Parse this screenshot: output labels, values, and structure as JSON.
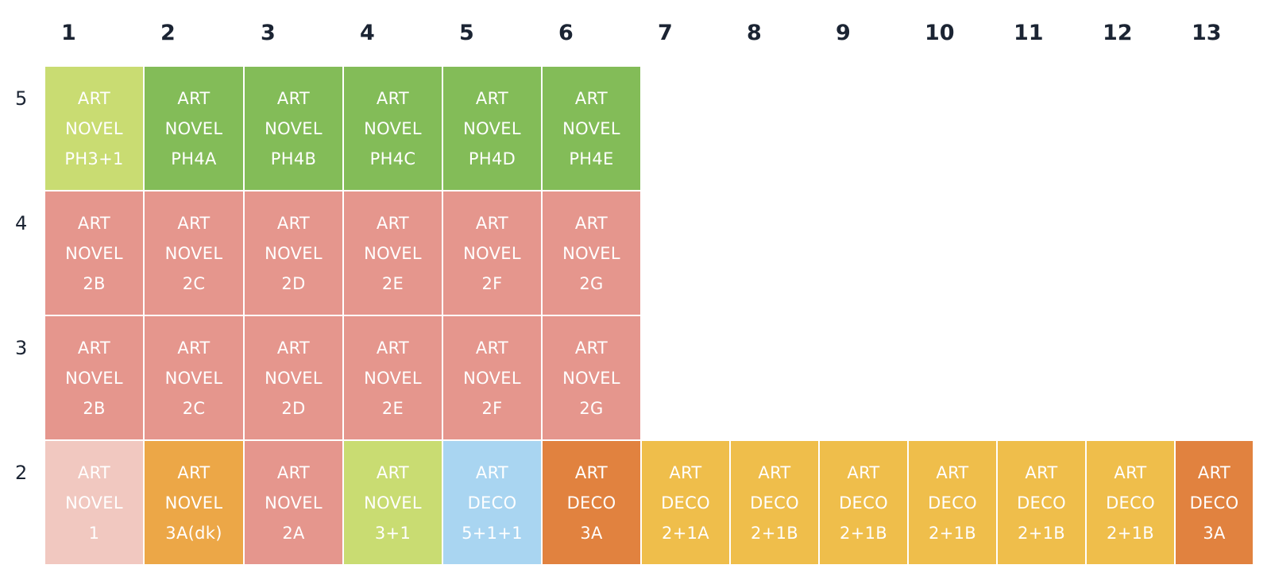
{
  "columns": [
    "1",
    "2",
    "3",
    "4",
    "5",
    "6",
    "7",
    "8",
    "9",
    "10",
    "11",
    "12",
    "13"
  ],
  "rows": [
    "5",
    "4",
    "3",
    "2"
  ],
  "colors": {
    "light-green": "#c9dc72",
    "green": "#83bc58",
    "salmon": "#e5968d",
    "pale-pink": "#f1c8c0",
    "orange": "#eca747",
    "light-blue": "#a9d5f1",
    "dark-orange": "#e1823f",
    "yellow": "#efbe4b"
  },
  "cells": [
    {
      "row": 0,
      "col": 0,
      "lines": [
        "ART",
        "NOVEL",
        "PH3+1"
      ],
      "color": "light-green"
    },
    {
      "row": 0,
      "col": 1,
      "lines": [
        "ART",
        "NOVEL",
        "PH4A"
      ],
      "color": "green"
    },
    {
      "row": 0,
      "col": 2,
      "lines": [
        "ART",
        "NOVEL",
        "PH4B"
      ],
      "color": "green"
    },
    {
      "row": 0,
      "col": 3,
      "lines": [
        "ART",
        "NOVEL",
        "PH4C"
      ],
      "color": "green"
    },
    {
      "row": 0,
      "col": 4,
      "lines": [
        "ART",
        "NOVEL",
        "PH4D"
      ],
      "color": "green"
    },
    {
      "row": 0,
      "col": 5,
      "lines": [
        "ART",
        "NOVEL",
        "PH4E"
      ],
      "color": "green"
    },
    {
      "row": 1,
      "col": 0,
      "lines": [
        "ART",
        "NOVEL",
        "2B"
      ],
      "color": "salmon"
    },
    {
      "row": 1,
      "col": 1,
      "lines": [
        "ART",
        "NOVEL",
        "2C"
      ],
      "color": "salmon"
    },
    {
      "row": 1,
      "col": 2,
      "lines": [
        "ART",
        "NOVEL",
        "2D"
      ],
      "color": "salmon"
    },
    {
      "row": 1,
      "col": 3,
      "lines": [
        "ART",
        "NOVEL",
        "2E"
      ],
      "color": "salmon"
    },
    {
      "row": 1,
      "col": 4,
      "lines": [
        "ART",
        "NOVEL",
        "2F"
      ],
      "color": "salmon"
    },
    {
      "row": 1,
      "col": 5,
      "lines": [
        "ART",
        "NOVEL",
        "2G"
      ],
      "color": "salmon"
    },
    {
      "row": 2,
      "col": 0,
      "lines": [
        "ART",
        "NOVEL",
        "2B"
      ],
      "color": "salmon"
    },
    {
      "row": 2,
      "col": 1,
      "lines": [
        "ART",
        "NOVEL",
        "2C"
      ],
      "color": "salmon"
    },
    {
      "row": 2,
      "col": 2,
      "lines": [
        "ART",
        "NOVEL",
        "2D"
      ],
      "color": "salmon"
    },
    {
      "row": 2,
      "col": 3,
      "lines": [
        "ART",
        "NOVEL",
        "2E"
      ],
      "color": "salmon"
    },
    {
      "row": 2,
      "col": 4,
      "lines": [
        "ART",
        "NOVEL",
        "2F"
      ],
      "color": "salmon"
    },
    {
      "row": 2,
      "col": 5,
      "lines": [
        "ART",
        "NOVEL",
        "2G"
      ],
      "color": "salmon"
    },
    {
      "row": 3,
      "col": 0,
      "lines": [
        "ART",
        "NOVEL",
        "1"
      ],
      "color": "pale-pink"
    },
    {
      "row": 3,
      "col": 1,
      "lines": [
        "ART",
        "NOVEL",
        "3A(dk)"
      ],
      "color": "orange"
    },
    {
      "row": 3,
      "col": 2,
      "lines": [
        "ART",
        "NOVEL",
        "2A"
      ],
      "color": "salmon"
    },
    {
      "row": 3,
      "col": 3,
      "lines": [
        "ART",
        "NOVEL",
        "3+1"
      ],
      "color": "light-green"
    },
    {
      "row": 3,
      "col": 4,
      "lines": [
        "ART",
        "DECO",
        "5+1+1"
      ],
      "color": "light-blue"
    },
    {
      "row": 3,
      "col": 5,
      "lines": [
        "ART",
        "DECO",
        "3A"
      ],
      "color": "dark-orange"
    },
    {
      "row": 3,
      "col": 6,
      "lines": [
        "ART",
        "DECO",
        "2+1A"
      ],
      "color": "yellow"
    },
    {
      "row": 3,
      "col": 7,
      "lines": [
        "ART",
        "DECO",
        "2+1B"
      ],
      "color": "yellow"
    },
    {
      "row": 3,
      "col": 8,
      "lines": [
        "ART",
        "DECO",
        "2+1B"
      ],
      "color": "yellow"
    },
    {
      "row": 3,
      "col": 9,
      "lines": [
        "ART",
        "DECO",
        "2+1B"
      ],
      "color": "yellow"
    },
    {
      "row": 3,
      "col": 10,
      "lines": [
        "ART",
        "DECO",
        "2+1B"
      ],
      "color": "yellow"
    },
    {
      "row": 3,
      "col": 11,
      "lines": [
        "ART",
        "DECO",
        "2+1B"
      ],
      "color": "yellow"
    },
    {
      "row": 3,
      "col": 12,
      "lines": [
        "ART",
        "DECO",
        "3A"
      ],
      "color": "dark-orange"
    }
  ]
}
